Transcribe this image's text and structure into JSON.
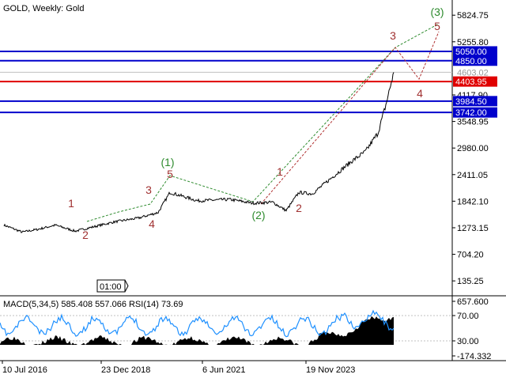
{
  "window": {
    "title": "GOLD, Weekly:  Gold",
    "time_marker": "01:00"
  },
  "price_axis": {
    "ticks": [
      "5824.75",
      "5255.80",
      "4117.90",
      "3548.95",
      "2980.00",
      "2411.05",
      "1842.10",
      "1273.15",
      "704.20",
      "135.25"
    ],
    "tick_values": [
      5824.75,
      5255.8,
      4117.9,
      3548.95,
      2980.0,
      2411.05,
      1842.1,
      1273.15,
      704.2,
      135.25
    ],
    "range": [
      -150,
      6150
    ]
  },
  "level_lines": [
    {
      "label": "5050.00",
      "price": 5050.0,
      "color": "#0000cc",
      "badge": "#0000cc"
    },
    {
      "label": "4850.00",
      "price": 4850.0,
      "color": "#0000cc",
      "badge": "#0000cc"
    },
    {
      "label": "4603.02",
      "price": 4603.02,
      "color": "#c0c0c0",
      "badge": null
    },
    {
      "label": "4403.95",
      "price": 4403.95,
      "color": "#e00000",
      "badge": "#e00000"
    },
    {
      "label": "3984.50",
      "price": 3984.5,
      "color": "#0000cc",
      "badge": "#0000cc"
    },
    {
      "label": "3742.00",
      "price": 3742.0,
      "color": "#0000cc",
      "badge": "#0000cc"
    }
  ],
  "time_axis": {
    "labels": [
      "10 Jul 2016",
      "23 Dec 2018",
      "6 Jun 2021",
      "19 Nov 2023"
    ]
  },
  "wave_labels": [
    {
      "text": "1",
      "color": "#a03030"
    },
    {
      "text": "2",
      "color": "#a03030"
    },
    {
      "text": "3",
      "color": "#a03030"
    },
    {
      "text": "4",
      "color": "#a03030"
    },
    {
      "text": "5",
      "color": "#a03030"
    },
    {
      "text": "(1)",
      "color": "#2e8b2e"
    },
    {
      "text": "(2)",
      "color": "#2e8b2e"
    },
    {
      "text": "1",
      "color": "#a03030"
    },
    {
      "text": "2",
      "color": "#a03030"
    },
    {
      "text": "3",
      "color": "#a03030"
    },
    {
      "text": "4",
      "color": "#a03030"
    },
    {
      "text": "5",
      "color": "#a03030"
    },
    {
      "text": "(3)",
      "color": "#2e8b2e"
    }
  ],
  "indicator": {
    "title": "MACD(5,34,5) 585.408 557.066 RSI(14) 73.69",
    "axis_ticks": [
      "657.600",
      "70.00",
      "30.00",
      "-174.332"
    ]
  },
  "colors": {
    "price_line": "#000000",
    "rsi_line": "#1e90ff",
    "green_wave": "#2e8b2e",
    "red_wave": "#b03030",
    "blue_level": "#0000cc",
    "red_level": "#e00000"
  },
  "chart_data": {
    "type": "line",
    "symbol": "GOLD",
    "timeframe": "Weekly",
    "x": [
      "2016-07",
      "2017-01",
      "2017-07",
      "2018-01",
      "2018-07",
      "2018-12",
      "2019-06",
      "2019-12",
      "2020-03",
      "2020-08",
      "2021-01",
      "2021-06",
      "2021-12",
      "2022-06",
      "2022-11",
      "2023-05",
      "2023-11",
      "2024-05",
      "2024-10",
      "2025-02",
      "2025-05",
      "2025-09",
      "2025-10"
    ],
    "y": [
      1330,
      1180,
      1240,
      1330,
      1200,
      1280,
      1400,
      1480,
      1600,
      2030,
      1850,
      1880,
      1800,
      1820,
      1640,
      2030,
      2000,
      2350,
      2700,
      2900,
      3300,
      3900,
      4600
    ],
    "ylim": [
      -150,
      6150
    ],
    "grid": false
  }
}
